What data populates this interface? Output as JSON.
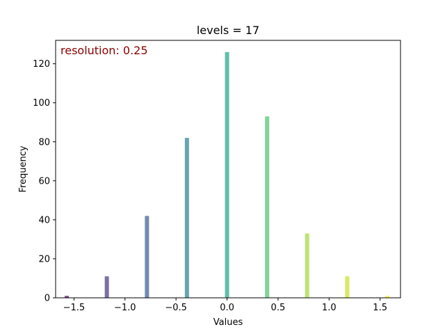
{
  "chart_data": {
    "type": "bar",
    "title": "levels = 17",
    "xlabel": "Values",
    "ylabel": "Frequency",
    "xlim": [
      -1.68,
      1.7
    ],
    "ylim": [
      0,
      132
    ],
    "xticks": [
      {
        "value": -1.5,
        "label": "−1.5"
      },
      {
        "value": -1.0,
        "label": "−1.0"
      },
      {
        "value": -0.5,
        "label": "−0.5"
      },
      {
        "value": 0.0,
        "label": "0.0"
      },
      {
        "value": 0.5,
        "label": "0.5"
      },
      {
        "value": 1.0,
        "label": "1.0"
      },
      {
        "value": 1.5,
        "label": "1.5"
      }
    ],
    "yticks": [
      {
        "value": 0,
        "label": "0"
      },
      {
        "value": 20,
        "label": "20"
      },
      {
        "value": 40,
        "label": "40"
      },
      {
        "value": 60,
        "label": "60"
      },
      {
        "value": 80,
        "label": "80"
      },
      {
        "value": 100,
        "label": "100"
      },
      {
        "value": 120,
        "label": "120"
      }
    ],
    "annotation": {
      "text": "resolution: 0.25",
      "color": "#8b0000",
      "placement": "top-left"
    },
    "grid": false,
    "x": [
      -1.571,
      -1.178,
      -0.785,
      -0.393,
      0.0,
      0.393,
      0.785,
      1.178,
      1.571
    ],
    "values": [
      1,
      11,
      42,
      82,
      126,
      93,
      33,
      11,
      1
    ],
    "colors": [
      "#440154",
      "#46337e",
      "#365c8d",
      "#277f8e",
      "#1fa187",
      "#4ac16d",
      "#a0da39",
      "#c8e020",
      "#fde725"
    ],
    "bar_opacity": 0.7
  }
}
